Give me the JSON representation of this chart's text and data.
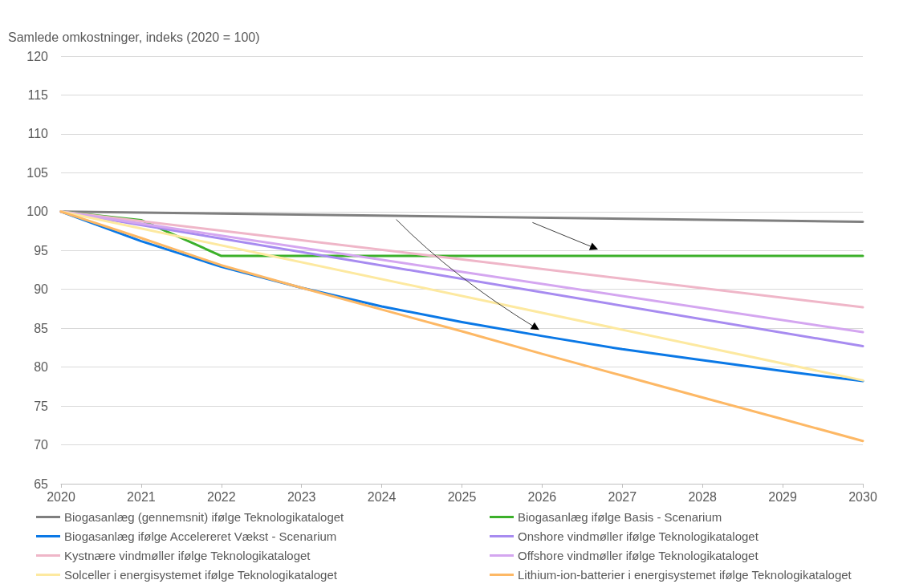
{
  "chart_data": {
    "type": "line",
    "ylabel": "Samlede omkostninger, indeks (2020 = 100)",
    "x": [
      2020,
      2021,
      2022,
      2023,
      2024,
      2025,
      2026,
      2027,
      2028,
      2029,
      2030
    ],
    "series": [
      {
        "name": "Biogasanlæg (gennemsnit) ifølge Teknologikataloget",
        "color": "#7f7f7f",
        "x": [
          2020,
          2030
        ],
        "values": [
          100,
          98.7
        ]
      },
      {
        "name": "Biogasanlæg ifølge Basis - Scenarium",
        "color": "#3cb02a",
        "x": [
          2020,
          2021,
          2022,
          2030
        ],
        "values": [
          100,
          98.9,
          94.3,
          94.3
        ]
      },
      {
        "name": "Biogasanlæg ifølge Accelereret Vækst - Scenarium",
        "color": "#0a78e6",
        "values": [
          100,
          96.2,
          92.9,
          90.2,
          87.8,
          85.8,
          84.0,
          82.3,
          80.9,
          79.5,
          78.2
        ]
      },
      {
        "name": "Onshore vindmøller ifølge Teknologikataloget",
        "color": "#a78bf0",
        "x": [
          2020,
          2030
        ],
        "values": [
          100,
          82.7
        ]
      },
      {
        "name": "Kystnære vindmøller ifølge Teknologikataloget",
        "color": "#efb6c8",
        "x": [
          2020,
          2030
        ],
        "values": [
          100,
          87.7
        ]
      },
      {
        "name": "Offshore vindmøller ifølge Teknologikataloget",
        "color": "#d4a6f0",
        "x": [
          2020,
          2030
        ],
        "values": [
          100,
          84.5
        ]
      },
      {
        "name": "Solceller i energisystemet ifølge Teknologikataloget",
        "color": "#fde9a0",
        "x": [
          2020,
          2030
        ],
        "values": [
          100,
          78.3
        ]
      },
      {
        "name": "Lithium-ion-batterier i energisystemet ifølge Teknologikataloget",
        "color": "#fdb865",
        "values": [
          100,
          96.6,
          93.1,
          90.2,
          87.4,
          84.6,
          81.7,
          78.9,
          76.1,
          73.3,
          70.5
        ]
      }
    ],
    "xlim": [
      2020,
      2030
    ],
    "xticks": [
      2020,
      2021,
      2022,
      2023,
      2024,
      2025,
      2026,
      2027,
      2028,
      2029,
      2030
    ],
    "ylim": [
      65,
      120
    ],
    "yticks": [
      65,
      70,
      75,
      80,
      85,
      90,
      95,
      100,
      105,
      110,
      115,
      120
    ],
    "grid": "y",
    "legend": "bottom",
    "marker": "none",
    "line_style": "solid"
  }
}
